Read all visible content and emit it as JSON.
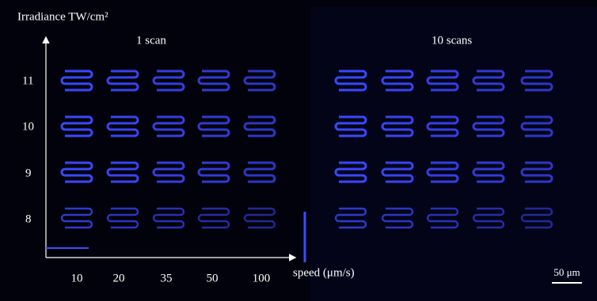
{
  "axes": {
    "y_label": "Irradiance TW/cm²",
    "y_ticks": [
      "11",
      "10",
      "9",
      "8"
    ],
    "x_ticks": [
      "10",
      "20",
      "35",
      "50",
      "100"
    ],
    "x_label": "speed (μm/s)"
  },
  "panels": [
    "1 scan",
    "10 scans"
  ],
  "scale_bar": "50 μm"
}
